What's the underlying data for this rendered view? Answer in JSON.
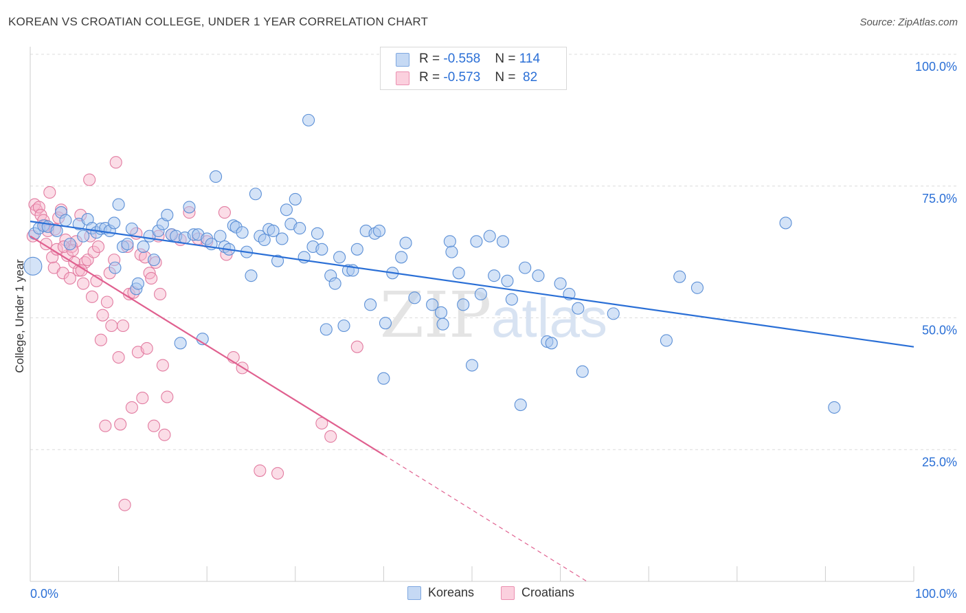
{
  "title": "KOREAN VS CROATIAN COLLEGE, UNDER 1 YEAR CORRELATION CHART",
  "source": "Source: ZipAtlas.com",
  "watermark": {
    "zip": "ZIP",
    "atlas": "atlas"
  },
  "legend": {
    "rows": [
      {
        "r_label": "R = ",
        "r_value": "-0.558",
        "n_label": "N = ",
        "n_value": "114",
        "color": "#a9c7ef"
      },
      {
        "r_label": "R = ",
        "r_value": "-0.573",
        "n_label": "N = ",
        "n_value": " 82",
        "color": "#f6b3c9"
      }
    ]
  },
  "bottom_legend": [
    {
      "label": "Koreans",
      "color": "#a9c7ef"
    },
    {
      "label": "Croatians",
      "color": "#f6b3c9"
    }
  ],
  "chart_data": {
    "type": "scatter",
    "title": "KOREAN VS CROATIAN COLLEGE, UNDER 1 YEAR CORRELATION CHART",
    "xlabel": "",
    "ylabel": "College, Under 1 year",
    "xlim": [
      0,
      100
    ],
    "ylim": [
      0,
      100
    ],
    "x_tick_labels": [
      "0.0%",
      "100.0%"
    ],
    "y_tick_labels": [
      "25.0%",
      "50.0%",
      "75.0%",
      "100.0%"
    ],
    "y_ticks": [
      25,
      50,
      75,
      100
    ],
    "grid": true,
    "colors": {
      "koreans_fill": "#a9c7ef",
      "koreans_stroke": "#5b8fd6",
      "koreans_line": "#2a6fd6",
      "croatians_fill": "#f6b3c9",
      "croatians_stroke": "#e27ba0",
      "croatians_line": "#e0608f",
      "axis_label": "#2a6fd6"
    },
    "series": [
      {
        "name": "Koreans",
        "trend": {
          "x": [
            0,
            100
          ],
          "y": [
            68.3,
            44.5
          ]
        },
        "points": [
          [
            0.3,
            59.8
          ],
          [
            0.5,
            66.0
          ],
          [
            1.0,
            67.0
          ],
          [
            1.5,
            67.5
          ],
          [
            2.0,
            67.3
          ],
          [
            3.0,
            66.5
          ],
          [
            3.5,
            70.0
          ],
          [
            4.0,
            68.5
          ],
          [
            4.5,
            64.0
          ],
          [
            5.5,
            67.8
          ],
          [
            6.0,
            65.5
          ],
          [
            6.5,
            68.7
          ],
          [
            7.0,
            67.0
          ],
          [
            7.5,
            66.2
          ],
          [
            8.0,
            66.9
          ],
          [
            8.5,
            67.0
          ],
          [
            9.0,
            66.5
          ],
          [
            9.5,
            68.0
          ],
          [
            9.6,
            59.5
          ],
          [
            10.0,
            71.5
          ],
          [
            10.5,
            63.5
          ],
          [
            11.0,
            64.0
          ],
          [
            11.5,
            66.9
          ],
          [
            12.0,
            55.5
          ],
          [
            12.2,
            56.5
          ],
          [
            12.8,
            63.5
          ],
          [
            13.5,
            65.5
          ],
          [
            14.0,
            61.0
          ],
          [
            14.5,
            66.5
          ],
          [
            15.0,
            67.8
          ],
          [
            15.5,
            69.5
          ],
          [
            16.0,
            65.8
          ],
          [
            16.5,
            65.5
          ],
          [
            17.0,
            45.2
          ],
          [
            17.5,
            65.2
          ],
          [
            18.0,
            71.0
          ],
          [
            18.5,
            65.8
          ],
          [
            19.0,
            65.8
          ],
          [
            19.5,
            46.0
          ],
          [
            20.0,
            65.0
          ],
          [
            20.5,
            64.0
          ],
          [
            21.0,
            76.8
          ],
          [
            21.5,
            65.5
          ],
          [
            22.0,
            63.5
          ],
          [
            22.5,
            63.0
          ],
          [
            23.0,
            67.5
          ],
          [
            23.3,
            67.2
          ],
          [
            24.0,
            66.2
          ],
          [
            24.5,
            62.5
          ],
          [
            25.0,
            58.0
          ],
          [
            25.5,
            73.5
          ],
          [
            26.0,
            65.5
          ],
          [
            26.5,
            64.8
          ],
          [
            27.0,
            66.8
          ],
          [
            27.5,
            66.5
          ],
          [
            28.0,
            60.8
          ],
          [
            28.5,
            65.0
          ],
          [
            29.0,
            70.5
          ],
          [
            29.5,
            67.8
          ],
          [
            30.0,
            72.5
          ],
          [
            30.5,
            67.0
          ],
          [
            31.0,
            61.5
          ],
          [
            31.5,
            87.5
          ],
          [
            32.0,
            63.5
          ],
          [
            32.5,
            66.0
          ],
          [
            33.0,
            63.0
          ],
          [
            33.5,
            47.8
          ],
          [
            34.0,
            58.0
          ],
          [
            34.5,
            56.5
          ],
          [
            35.0,
            61.5
          ],
          [
            35.5,
            48.5
          ],
          [
            36.0,
            59.0
          ],
          [
            36.5,
            59.0
          ],
          [
            37.0,
            63.0
          ],
          [
            38.0,
            66.5
          ],
          [
            38.5,
            52.5
          ],
          [
            39.0,
            66.0
          ],
          [
            39.5,
            66.5
          ],
          [
            40.0,
            38.5
          ],
          [
            40.2,
            49.0
          ],
          [
            41.0,
            58.5
          ],
          [
            42.0,
            61.5
          ],
          [
            42.5,
            64.2
          ],
          [
            43.5,
            53.8
          ],
          [
            45.5,
            52.5
          ],
          [
            46.5,
            51.0
          ],
          [
            46.7,
            48.8
          ],
          [
            47.5,
            64.5
          ],
          [
            47.7,
            62.5
          ],
          [
            48.5,
            58.5
          ],
          [
            49.0,
            52.5
          ],
          [
            50.0,
            41.0
          ],
          [
            50.5,
            64.5
          ],
          [
            51.0,
            54.5
          ],
          [
            52.0,
            65.5
          ],
          [
            52.5,
            58.0
          ],
          [
            53.5,
            64.5
          ],
          [
            54.0,
            57.0
          ],
          [
            54.5,
            53.5
          ],
          [
            55.5,
            33.5
          ],
          [
            56.0,
            59.5
          ],
          [
            57.5,
            58.0
          ],
          [
            58.5,
            45.5
          ],
          [
            59.0,
            45.2
          ],
          [
            60.0,
            56.5
          ],
          [
            61.0,
            54.5
          ],
          [
            62.0,
            51.8
          ],
          [
            62.5,
            39.8
          ],
          [
            66.0,
            50.8
          ],
          [
            72.0,
            45.7
          ],
          [
            73.5,
            57.8
          ],
          [
            75.5,
            55.7
          ],
          [
            85.5,
            68.0
          ],
          [
            91.0,
            33.0
          ]
        ]
      },
      {
        "name": "Croatians",
        "trend": {
          "x": [
            0,
            40
          ],
          "y": [
            65.5,
            24.0
          ]
        },
        "trend_extension": {
          "x": [
            40,
            63
          ],
          "y": [
            24.0,
            0
          ]
        },
        "points": [
          [
            0.3,
            65.5
          ],
          [
            0.5,
            71.5
          ],
          [
            0.7,
            70.5
          ],
          [
            1.0,
            71.0
          ],
          [
            1.2,
            69.5
          ],
          [
            1.5,
            68.5
          ],
          [
            1.7,
            67.5
          ],
          [
            2.0,
            66.5
          ],
          [
            2.2,
            73.8
          ],
          [
            2.5,
            61.5
          ],
          [
            2.7,
            59.5
          ],
          [
            3.0,
            63.0
          ],
          [
            3.2,
            69.0
          ],
          [
            3.5,
            70.5
          ],
          [
            3.7,
            58.5
          ],
          [
            4.0,
            64.8
          ],
          [
            4.2,
            61.8
          ],
          [
            4.5,
            57.5
          ],
          [
            4.7,
            63.5
          ],
          [
            5.0,
            60.5
          ],
          [
            5.2,
            64.5
          ],
          [
            5.5,
            59.0
          ],
          [
            5.7,
            69.5
          ],
          [
            6.0,
            56.5
          ],
          [
            6.2,
            60.5
          ],
          [
            6.5,
            61.0
          ],
          [
            6.7,
            76.2
          ],
          [
            7.0,
            54.0
          ],
          [
            7.2,
            62.5
          ],
          [
            7.5,
            57.0
          ],
          [
            7.7,
            63.5
          ],
          [
            8.0,
            45.8
          ],
          [
            8.2,
            50.5
          ],
          [
            8.5,
            29.5
          ],
          [
            8.7,
            53.0
          ],
          [
            9.0,
            58.5
          ],
          [
            9.2,
            48.5
          ],
          [
            9.5,
            61.0
          ],
          [
            9.7,
            79.5
          ],
          [
            10.0,
            42.5
          ],
          [
            10.2,
            29.8
          ],
          [
            10.5,
            48.5
          ],
          [
            10.7,
            14.5
          ],
          [
            11.0,
            63.5
          ],
          [
            11.2,
            54.5
          ],
          [
            11.5,
            33.0
          ],
          [
            11.7,
            54.8
          ],
          [
            12.0,
            66.0
          ],
          [
            12.2,
            43.5
          ],
          [
            12.5,
            62.0
          ],
          [
            12.7,
            34.8
          ],
          [
            13.0,
            61.5
          ],
          [
            13.2,
            44.2
          ],
          [
            13.5,
            58.5
          ],
          [
            13.7,
            57.5
          ],
          [
            14.0,
            29.5
          ],
          [
            14.2,
            60.5
          ],
          [
            14.5,
            65.5
          ],
          [
            14.7,
            54.5
          ],
          [
            15.0,
            41.0
          ],
          [
            15.2,
            27.8
          ],
          [
            15.5,
            35.0
          ],
          [
            16.0,
            65.8
          ],
          [
            17.0,
            64.8
          ],
          [
            18.0,
            70.0
          ],
          [
            19.0,
            65.0
          ],
          [
            20.0,
            64.5
          ],
          [
            22.0,
            70.0
          ],
          [
            22.2,
            62.0
          ],
          [
            23.0,
            42.5
          ],
          [
            24.0,
            40.5
          ],
          [
            26.0,
            21.0
          ],
          [
            28.0,
            20.5
          ],
          [
            33.0,
            30.0
          ],
          [
            34.0,
            27.5
          ],
          [
            37.0,
            44.5
          ],
          [
            1.8,
            64.0
          ],
          [
            2.8,
            66.8
          ],
          [
            3.8,
            63.5
          ],
          [
            4.8,
            62.8
          ],
          [
            5.8,
            59.0
          ],
          [
            6.8,
            65.5
          ]
        ]
      }
    ]
  }
}
